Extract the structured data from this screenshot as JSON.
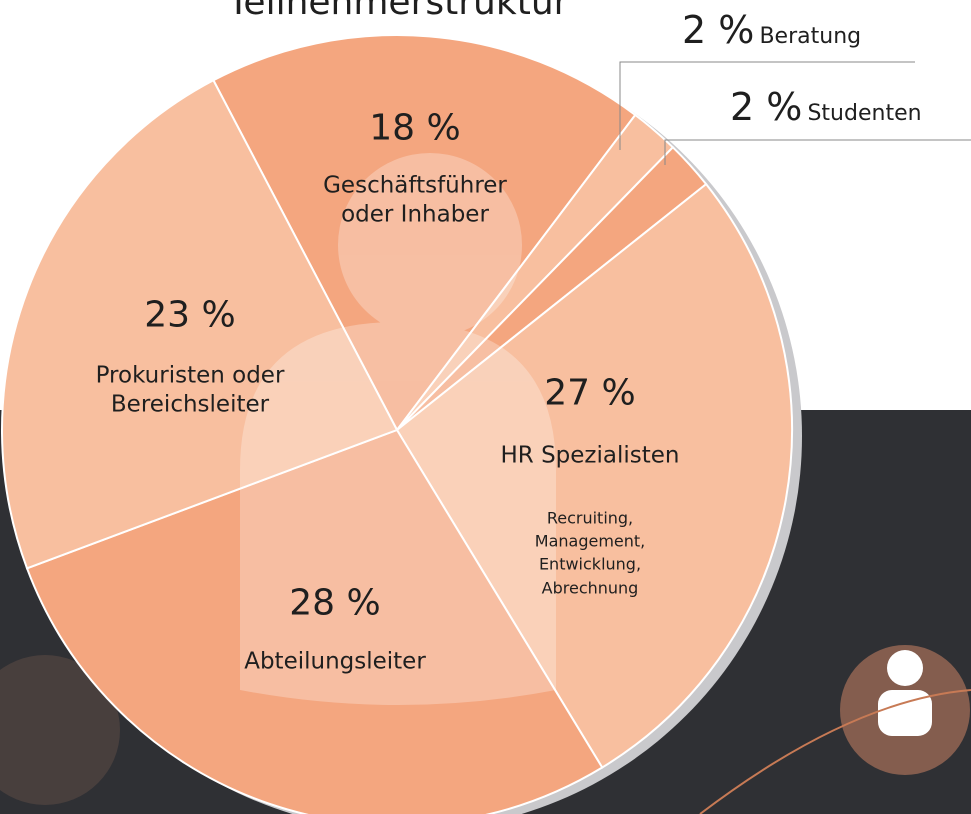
{
  "chart_data": {
    "type": "pie",
    "title": "Teilnehmerstruktur",
    "categories": [
      "Geschäftsführer oder Inhaber",
      "Beratung",
      "Studenten",
      "HR Spezialisten",
      "Abteilungsleiter",
      "Prokuristen oder Bereichsleiter"
    ],
    "values": [
      18,
      2,
      2,
      27,
      28,
      23
    ],
    "value_labels": [
      "18 %",
      "2 %",
      "2 %",
      "27 %",
      "28 %",
      "23 %"
    ],
    "colors": [
      "#f4a67f",
      "#f8bf9f",
      "#f4a67f",
      "#f8bf9f",
      "#f4a67f",
      "#f8bf9f"
    ],
    "annotations": [
      "Recruiting, Management, Entwicklung, Abrechnung"
    ]
  }
}
